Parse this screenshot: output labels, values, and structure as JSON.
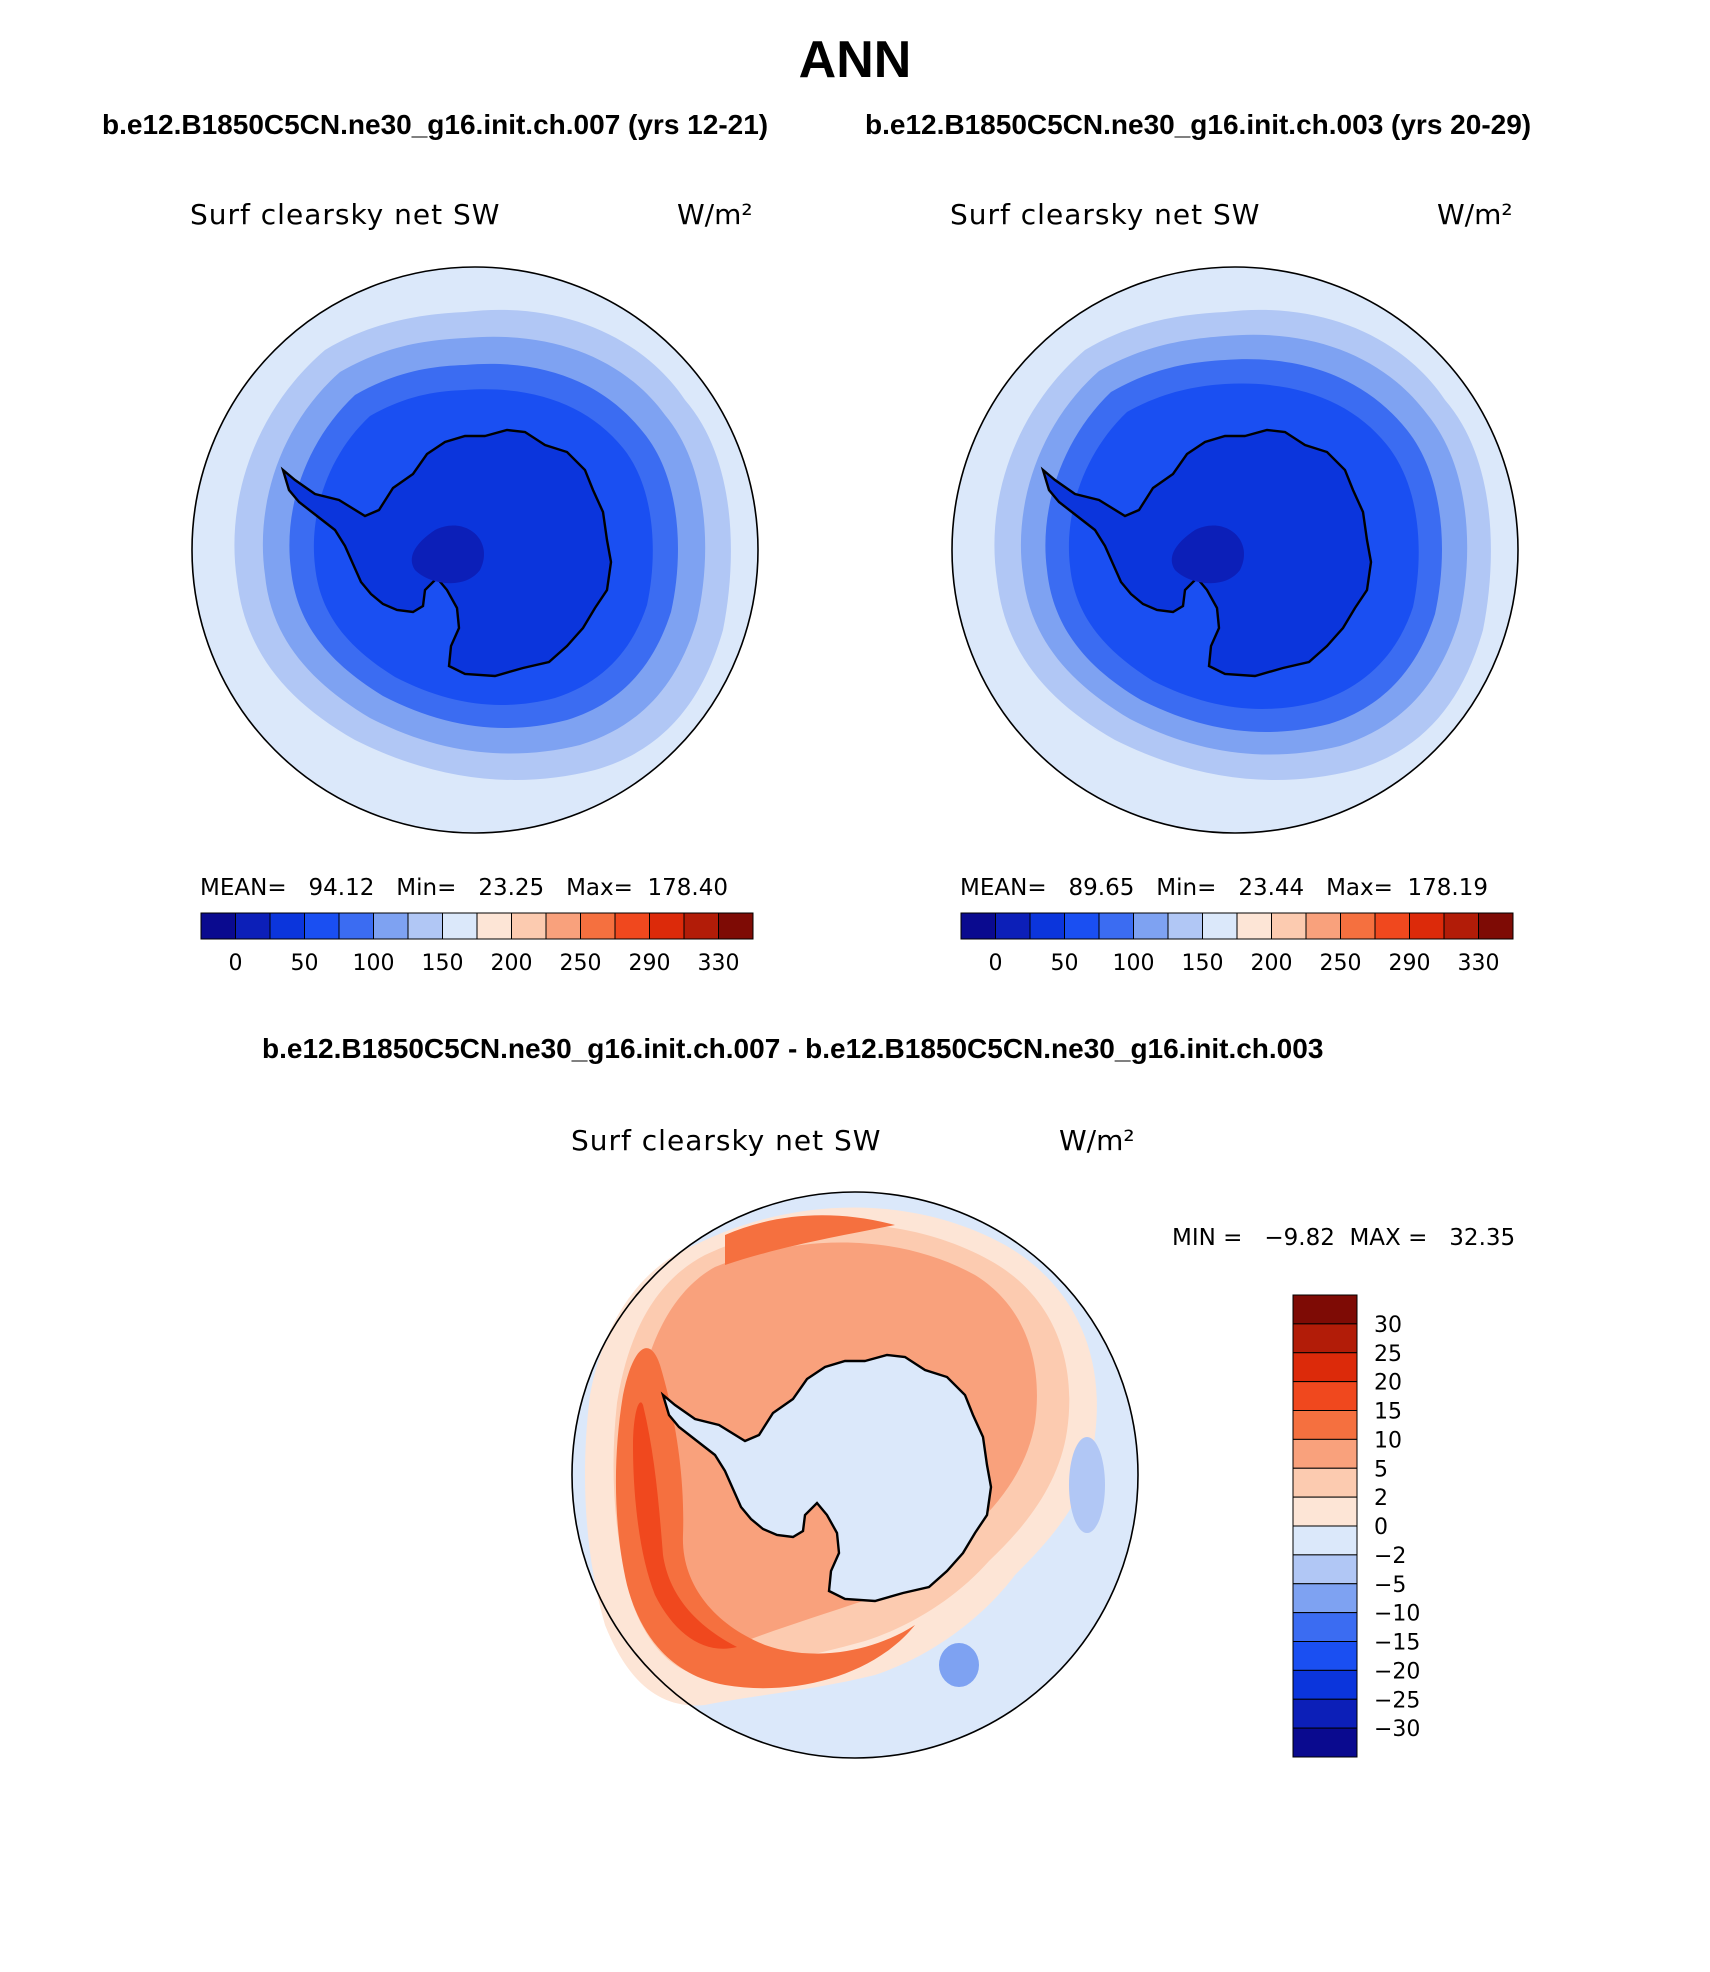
{
  "header": {
    "title": "ANN",
    "case_left": "b.e12.B1850C5CN.ne30_g16.init.ch.007 (yrs 12-21)",
    "case_right": "b.e12.B1850C5CN.ne30_g16.init.ch.003 (yrs 20-29)",
    "diff_title": "b.e12.B1850C5CN.ne30_g16.init.ch.007 - b.e12.B1850C5CN.ne30_g16.init.ch.003"
  },
  "panels": {
    "left": {
      "variable": "Surf clearsky net SW",
      "units": "W/m²",
      "stats": "MEAN=   94.12   Min=   23.25   Max=  178.40"
    },
    "right": {
      "variable": "Surf clearsky net SW",
      "units": "W/m²",
      "stats": "MEAN=   89.65   Min=   23.44   Max=  178.19"
    },
    "diff": {
      "variable": "Surf clearsky net SW",
      "units": "W/m²",
      "minmax": "MIN =   −9.82  MAX =   32.35"
    }
  },
  "colorbars": {
    "main": {
      "colors": [
        "#0a0a8f",
        "#0c1fb8",
        "#0b35dc",
        "#1a4ff2",
        "#3b6cf2",
        "#7ea2f2",
        "#b1c7f5",
        "#dbe8fa",
        "#fde5d6",
        "#fccbb0",
        "#f9a17c",
        "#f5703f",
        "#f0481e",
        "#dc2a0a",
        "#b21c08",
        "#7e0b05"
      ],
      "labels": [
        "0",
        "50",
        "100",
        "150",
        "200",
        "250",
        "290",
        "330"
      ]
    },
    "diff": {
      "colors": [
        "#7e0b05",
        "#b21c08",
        "#dc2a0a",
        "#f0481e",
        "#f5703f",
        "#f9a17c",
        "#fccbb0",
        "#fde5d6",
        "#dbe8fa",
        "#b1c7f5",
        "#7ea2f2",
        "#3b6cf2",
        "#1a4ff2",
        "#0b35dc",
        "#0c1fb8",
        "#0a0a8f"
      ],
      "labels": [
        "30",
        "25",
        "20",
        "15",
        "10",
        "5",
        "2",
        "0",
        "−2",
        "−5",
        "−10",
        "−15",
        "−20",
        "−25",
        "−30"
      ]
    }
  }
}
